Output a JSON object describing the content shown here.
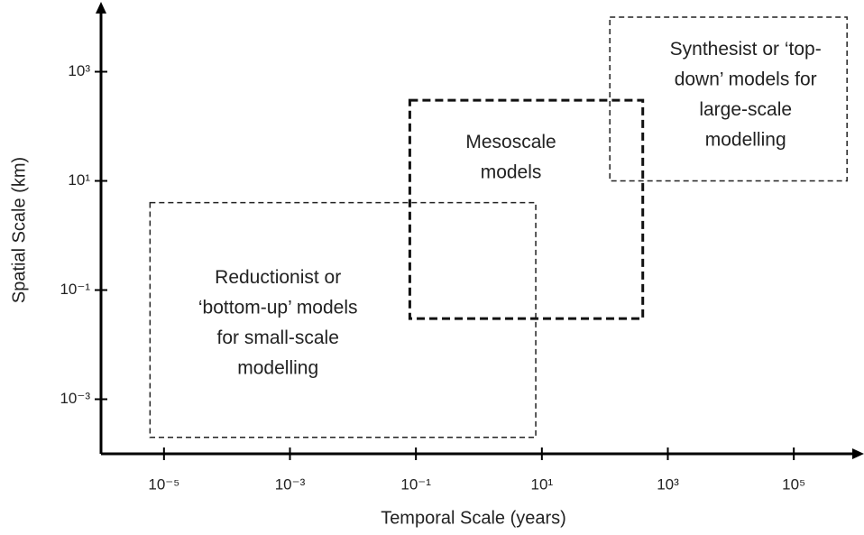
{
  "chart_data": {
    "type": "region",
    "x_label": "Temporal Scale (years)",
    "y_label": "Spatial Scale (km)",
    "x_log": true,
    "y_log": true,
    "xlim": [
      1e-06,
      1000000
    ],
    "ylim": [
      0.0001,
      10000
    ],
    "xticks": [
      {
        "value": 1e-05,
        "label": "10⁻⁵"
      },
      {
        "value": 0.001,
        "label": "10⁻³"
      },
      {
        "value": 0.1,
        "label": "10⁻¹"
      },
      {
        "value": 10,
        "label": "10¹"
      },
      {
        "value": 1000,
        "label": "10³"
      },
      {
        "value": 100000,
        "label": "10⁵"
      }
    ],
    "yticks": [
      {
        "value": 0.001,
        "label": "10⁻³"
      },
      {
        "value": 0.1,
        "label": "10⁻¹"
      },
      {
        "value": 10,
        "label": "10¹"
      },
      {
        "value": 1000,
        "label": "10³"
      }
    ],
    "series": [
      {
        "label": [
          "Reductionist or",
          "‘bottom-up’ models",
          "for small-scale",
          "modelling"
        ],
        "x": [
          6e-06,
          8
        ],
        "y": [
          0.0002,
          4
        ],
        "color": "#222222",
        "line_width": 1.5
      },
      {
        "label": [
          "Mesoscale",
          "models"
        ],
        "x": [
          0.08,
          400
        ],
        "y": [
          0.03,
          300
        ],
        "color": "#111111",
        "line_width": 3
      },
      {
        "label": [
          "Synthesist or ‘top-",
          "down’ models for",
          "large-scale",
          "modelling"
        ],
        "x": [
          120,
          700000
        ],
        "y": [
          10,
          10000
        ],
        "color": "#222222",
        "line_width": 1.5
      }
    ]
  }
}
